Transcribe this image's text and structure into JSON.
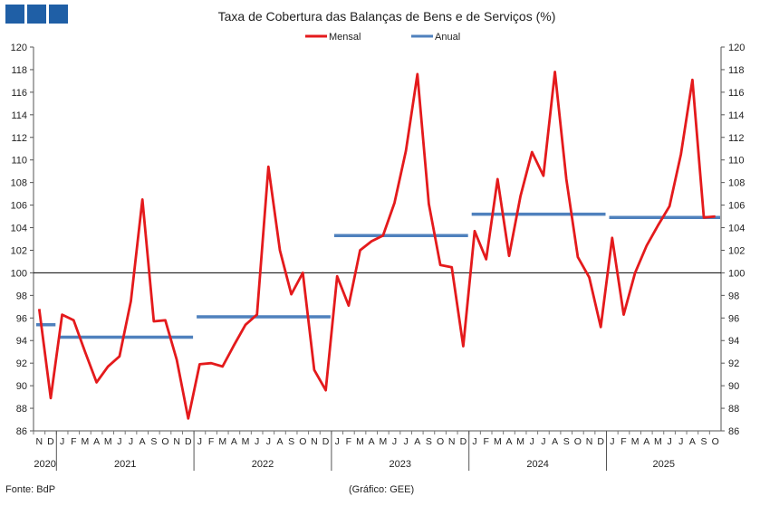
{
  "header": {
    "logo_color": "#1f5fa6"
  },
  "footer": {
    "source": "Fonte: BdP",
    "credit": "(Gráfico: GEE)"
  },
  "chart_data": {
    "type": "line",
    "title": "Taxa de Cobertura das Balanças de Bens e de Serviços (%)",
    "xlabel": "",
    "ylabel": "",
    "ylim": [
      86,
      120
    ],
    "yticks": [
      86,
      88,
      90,
      92,
      94,
      96,
      98,
      100,
      102,
      104,
      106,
      108,
      110,
      112,
      114,
      116,
      118,
      120
    ],
    "reference_line": 100,
    "grid": false,
    "legend_position": "top-center",
    "month_labels": [
      "N",
      "D",
      "J",
      "F",
      "M",
      "A",
      "M",
      "J",
      "J",
      "A",
      "S",
      "O",
      "N",
      "D",
      "J",
      "F",
      "M",
      "A",
      "M",
      "J",
      "J",
      "A",
      "S",
      "O",
      "N",
      "D",
      "J",
      "F",
      "M",
      "A",
      "M",
      "J",
      "J",
      "A",
      "S",
      "O",
      "N",
      "D",
      "J",
      "F",
      "M",
      "A",
      "M",
      "J",
      "J",
      "A",
      "S",
      "O",
      "N",
      "D",
      "J",
      "F",
      "M",
      "A",
      "M",
      "J",
      "J",
      "A",
      "S",
      "O"
    ],
    "year_labels": [
      {
        "label": "2020",
        "start": 0,
        "end": 1
      },
      {
        "label": "2021",
        "start": 2,
        "end": 13
      },
      {
        "label": "2022",
        "start": 14,
        "end": 25
      },
      {
        "label": "2023",
        "start": 26,
        "end": 37
      },
      {
        "label": "2024",
        "start": 38,
        "end": 49
      },
      {
        "label": "2025",
        "start": 50,
        "end": 59
      }
    ],
    "series": [
      {
        "name": "Mensal",
        "color": "#e41a1c",
        "values": [
          96.8,
          88.9,
          96.3,
          95.8,
          93.0,
          90.3,
          91.7,
          92.6,
          97.5,
          106.5,
          95.7,
          95.8,
          92.3,
          87.1,
          91.9,
          92.0,
          91.7,
          93.6,
          95.4,
          96.3,
          109.4,
          102.0,
          98.1,
          100.0,
          91.4,
          89.6,
          99.7,
          97.1,
          102.0,
          102.8,
          103.3,
          106.2,
          110.8,
          117.6,
          106.1,
          100.7,
          100.5,
          93.5,
          103.7,
          101.2,
          108.3,
          101.5,
          106.8,
          110.7,
          108.6,
          117.8,
          108.3,
          101.4,
          99.6,
          95.2,
          103.1,
          96.3,
          100.0,
          102.4,
          104.2,
          105.9,
          110.5,
          117.1,
          104.9,
          105.0
        ]
      },
      {
        "name": "Anual",
        "color": "#4f81bd",
        "segments": [
          {
            "start": 0,
            "end": 1,
            "value": 95.4
          },
          {
            "start": 2,
            "end": 13,
            "value": 94.3
          },
          {
            "start": 14,
            "end": 25,
            "value": 96.1
          },
          {
            "start": 26,
            "end": 37,
            "value": 103.3
          },
          {
            "start": 38,
            "end": 49,
            "value": 105.2
          },
          {
            "start": 50,
            "end": 59,
            "value": 104.9
          }
        ]
      }
    ]
  }
}
